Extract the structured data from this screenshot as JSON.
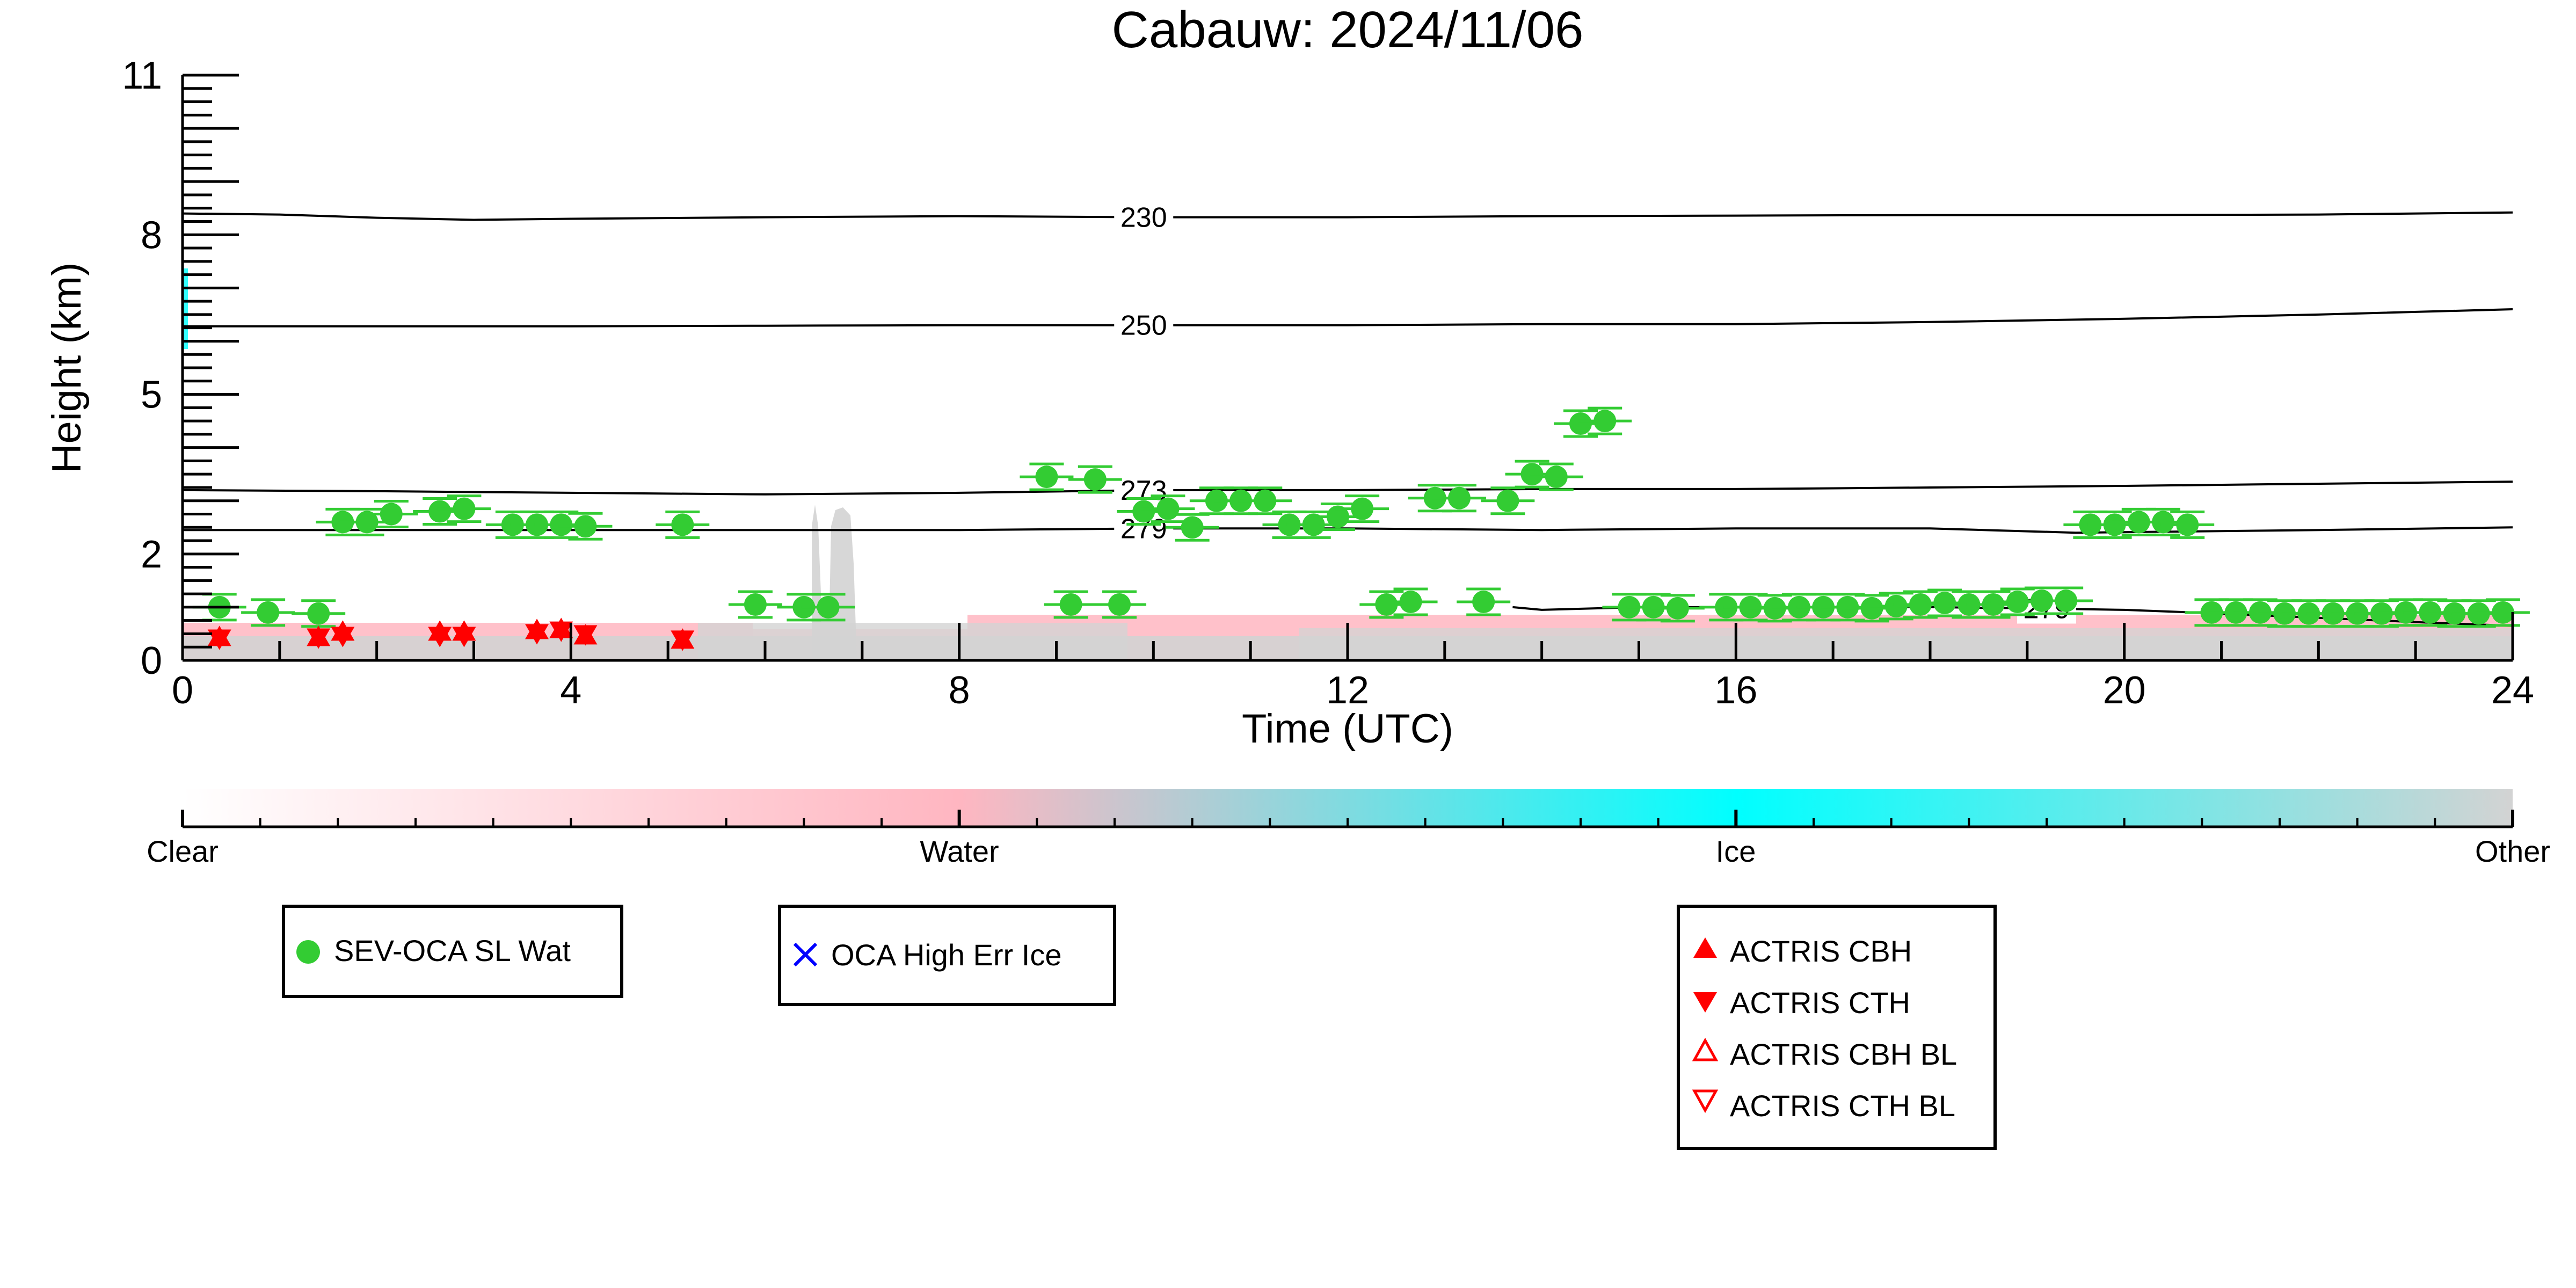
{
  "chart_data": {
    "type": "scatter",
    "title": "Cabauw: 2024/11/06",
    "xlabel": "Time (UTC)",
    "ylabel": "Height (km)",
    "xlim": [
      0,
      24
    ],
    "ylim": [
      0,
      11
    ],
    "x_ticks": [
      0,
      4,
      8,
      12,
      16,
      20,
      24
    ],
    "y_ticks": [
      0,
      2,
      5,
      8,
      11
    ],
    "grid": false,
    "series": [
      {
        "name": "SEV-OCA SL Wat",
        "color": "#33cc33",
        "marker": "circle-with-errorbar",
        "points": [
          [
            0.38,
            1.0
          ],
          [
            0.88,
            0.9
          ],
          [
            1.4,
            0.88
          ],
          [
            1.65,
            2.6
          ],
          [
            1.9,
            2.6
          ],
          [
            2.15,
            2.75
          ],
          [
            2.65,
            2.8
          ],
          [
            2.9,
            2.85
          ],
          [
            3.4,
            2.55
          ],
          [
            3.65,
            2.55
          ],
          [
            3.9,
            2.55
          ],
          [
            4.15,
            2.52
          ],
          [
            5.15,
            2.55
          ],
          [
            5.9,
            1.05
          ],
          [
            6.4,
            1.0
          ],
          [
            6.65,
            1.0
          ],
          [
            8.9,
            3.45
          ],
          [
            9.15,
            1.05
          ],
          [
            9.4,
            3.4
          ],
          [
            9.65,
            1.05
          ],
          [
            9.9,
            2.8
          ],
          [
            10.15,
            2.85
          ],
          [
            10.4,
            2.5
          ],
          [
            10.65,
            3.0
          ],
          [
            10.9,
            3.0
          ],
          [
            11.15,
            3.0
          ],
          [
            11.4,
            2.55
          ],
          [
            11.65,
            2.55
          ],
          [
            11.9,
            2.7
          ],
          [
            12.15,
            2.85
          ],
          [
            12.4,
            1.05
          ],
          [
            12.65,
            1.1
          ],
          [
            12.9,
            3.05
          ],
          [
            13.15,
            3.05
          ],
          [
            13.4,
            1.1
          ],
          [
            13.65,
            3.0
          ],
          [
            13.9,
            3.5
          ],
          [
            14.15,
            3.45
          ],
          [
            14.4,
            4.45
          ],
          [
            14.65,
            4.5
          ],
          [
            14.9,
            1.0
          ],
          [
            15.15,
            1.0
          ],
          [
            15.4,
            0.98
          ],
          [
            15.9,
            1.0
          ],
          [
            16.15,
            1.0
          ],
          [
            16.4,
            0.98
          ],
          [
            16.65,
            1.0
          ],
          [
            16.9,
            1.0
          ],
          [
            17.15,
            1.0
          ],
          [
            17.4,
            0.98
          ],
          [
            17.65,
            1.02
          ],
          [
            17.9,
            1.05
          ],
          [
            18.15,
            1.08
          ],
          [
            18.4,
            1.05
          ],
          [
            18.65,
            1.05
          ],
          [
            18.9,
            1.1
          ],
          [
            19.15,
            1.12
          ],
          [
            19.4,
            1.12
          ],
          [
            19.65,
            2.55
          ],
          [
            19.9,
            2.55
          ],
          [
            20.15,
            2.6
          ],
          [
            20.4,
            2.6
          ],
          [
            20.65,
            2.55
          ],
          [
            20.9,
            0.9
          ],
          [
            21.15,
            0.9
          ],
          [
            21.4,
            0.9
          ],
          [
            21.65,
            0.88
          ],
          [
            21.9,
            0.88
          ],
          [
            22.15,
            0.88
          ],
          [
            22.4,
            0.88
          ],
          [
            22.65,
            0.88
          ],
          [
            22.9,
            0.9
          ],
          [
            23.15,
            0.9
          ],
          [
            23.4,
            0.88
          ],
          [
            23.65,
            0.88
          ],
          [
            23.9,
            0.9
          ]
        ]
      },
      {
        "name": "ACTRIS CBH",
        "color": "#ff0000",
        "marker": "triangle-up",
        "points": [
          [
            0.38,
            0.35
          ],
          [
            1.4,
            0.35
          ],
          [
            1.65,
            0.45
          ],
          [
            2.65,
            0.45
          ],
          [
            2.9,
            0.45
          ],
          [
            3.65,
            0.48
          ],
          [
            3.9,
            0.5
          ],
          [
            4.15,
            0.38
          ],
          [
            5.15,
            0.3
          ]
        ]
      },
      {
        "name": "ACTRIS CTH",
        "color": "#ff0000",
        "marker": "triangle-down",
        "points": [
          [
            0.38,
            0.5
          ],
          [
            1.4,
            0.52
          ],
          [
            1.65,
            0.55
          ],
          [
            2.65,
            0.55
          ],
          [
            2.9,
            0.55
          ],
          [
            3.65,
            0.6
          ],
          [
            3.9,
            0.65
          ],
          [
            4.15,
            0.58
          ],
          [
            5.15,
            0.48
          ]
        ]
      }
    ],
    "contours": [
      {
        "label": "230",
        "label_x": 9.9,
        "points": [
          [
            0,
            8.4
          ],
          [
            1,
            8.38
          ],
          [
            2,
            8.32
          ],
          [
            3,
            8.28
          ],
          [
            4,
            8.3
          ],
          [
            6,
            8.33
          ],
          [
            8,
            8.35
          ],
          [
            10,
            8.33
          ],
          [
            12,
            8.33
          ],
          [
            14,
            8.35
          ],
          [
            16,
            8.36
          ],
          [
            18,
            8.37
          ],
          [
            20,
            8.37
          ],
          [
            22,
            8.38
          ],
          [
            24,
            8.42
          ]
        ]
      },
      {
        "label": "250",
        "label_x": 9.9,
        "points": [
          [
            0,
            6.28
          ],
          [
            2,
            6.28
          ],
          [
            4,
            6.28
          ],
          [
            6,
            6.29
          ],
          [
            8,
            6.3
          ],
          [
            10,
            6.3
          ],
          [
            12,
            6.3
          ],
          [
            14,
            6.32
          ],
          [
            16,
            6.32
          ],
          [
            18,
            6.36
          ],
          [
            20,
            6.42
          ],
          [
            22,
            6.5
          ],
          [
            24,
            6.6
          ]
        ]
      },
      {
        "label": "273",
        "label_x": 9.9,
        "points": [
          [
            0,
            3.2
          ],
          [
            2,
            3.18
          ],
          [
            4,
            3.15
          ],
          [
            6,
            3.12
          ],
          [
            8,
            3.15
          ],
          [
            10,
            3.2
          ],
          [
            12,
            3.2
          ],
          [
            14,
            3.22
          ],
          [
            16,
            3.22
          ],
          [
            18,
            3.25
          ],
          [
            20,
            3.28
          ],
          [
            22,
            3.32
          ],
          [
            24,
            3.36
          ]
        ]
      },
      {
        "label": "279",
        "label_x": 9.9,
        "points": [
          [
            0,
            2.45
          ],
          [
            2,
            2.45
          ],
          [
            4,
            2.45
          ],
          [
            6,
            2.45
          ],
          [
            8,
            2.45
          ],
          [
            10,
            2.48
          ],
          [
            12,
            2.48
          ],
          [
            14,
            2.45
          ],
          [
            16,
            2.48
          ],
          [
            18,
            2.48
          ],
          [
            19.5,
            2.4
          ],
          [
            20.5,
            2.42
          ],
          [
            22,
            2.45
          ],
          [
            24,
            2.5
          ]
        ]
      },
      {
        "label": "279",
        "label_x": 19.2,
        "points": [
          [
            13.7,
            1.0
          ],
          [
            14.0,
            0.95
          ],
          [
            15,
            1.0
          ],
          [
            16,
            1.0
          ],
          [
            17,
            1.0
          ],
          [
            18,
            1.0
          ],
          [
            19,
            0.98
          ],
          [
            20,
            0.95
          ],
          [
            21,
            0.88
          ],
          [
            22,
            0.8
          ],
          [
            23,
            0.72
          ],
          [
            24,
            0.65
          ]
        ]
      }
    ],
    "colorbar": {
      "labels": [
        "Clear",
        "Water",
        "Ice",
        "Other"
      ],
      "colors": [
        "#ffffff",
        "#ffb6c1",
        "#00ffff",
        "#d3d3d3"
      ]
    },
    "legends": [
      {
        "entries": [
          {
            "label": "SEV-OCA SL Wat",
            "marker": "circle",
            "color": "#33cc33"
          }
        ]
      },
      {
        "entries": [
          {
            "label": "OCA High Err Ice",
            "marker": "x",
            "color": "#0000ff"
          }
        ]
      },
      {
        "entries": [
          {
            "label": "ACTRIS CBH",
            "marker": "triangle-up",
            "color": "#ff0000"
          },
          {
            "label": "ACTRIS CTH",
            "marker": "triangle-down",
            "color": "#ff0000"
          },
          {
            "label": "ACTRIS CBH BL",
            "marker": "triangle-up-open",
            "color": "#ff0000"
          },
          {
            "label": "ACTRIS CTH BL",
            "marker": "triangle-down-open",
            "color": "#ff0000"
          }
        ]
      }
    ]
  }
}
